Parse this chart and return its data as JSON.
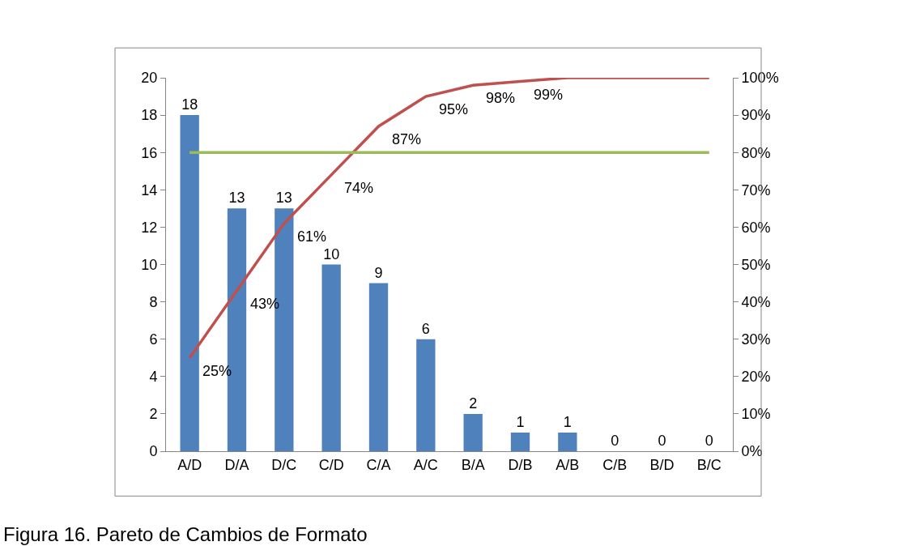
{
  "chart_data": {
    "type": "bar",
    "title": "Figura 16. Pareto de Cambios de Formato",
    "categories": [
      "A/D",
      "D/A",
      "D/C",
      "C/D",
      "C/A",
      "A/C",
      "B/A",
      "D/B",
      "A/B",
      "C/B",
      "B/D",
      "B/C"
    ],
    "series": [
      {
        "color": "#4f81bd",
        "values": [
          18,
          13,
          13,
          10,
          9,
          6,
          2,
          1,
          1,
          0,
          0,
          0
        ],
        "value_labels": [
          "18",
          "13",
          "13",
          "10",
          "9",
          "6",
          "2",
          "1",
          "1",
          "0",
          "0",
          "0"
        ]
      },
      {
        "type": "line",
        "axis": "y2",
        "color": "#c0504d",
        "values": [
          25,
          43,
          61,
          74,
          87,
          95,
          98,
          99,
          100,
          100,
          100,
          100
        ],
        "value_labels": [
          "25%",
          "43%",
          "61%",
          "74%",
          "87%",
          "95%",
          "98%",
          "99%",
          null,
          null,
          null,
          null
        ]
      }
    ],
    "ref_lines": [
      {
        "axis": "y2",
        "value": 80,
        "color": "#9bbb59"
      }
    ],
    "ylim": [
      0,
      20
    ],
    "yticks": [
      0,
      2,
      4,
      6,
      8,
      10,
      12,
      14,
      16,
      18,
      20
    ],
    "y2lim": [
      0,
      100
    ],
    "y2ticks": [
      {
        "value": 0,
        "label": "0%"
      },
      {
        "value": 10,
        "label": "10%"
      },
      {
        "value": 20,
        "label": "20%"
      },
      {
        "value": 30,
        "label": "30%"
      },
      {
        "value": 40,
        "label": "40%"
      },
      {
        "value": 50,
        "label": "50%"
      },
      {
        "value": 60,
        "label": "60%"
      },
      {
        "value": 70,
        "label": "70%"
      },
      {
        "value": 80,
        "label": "80%"
      },
      {
        "value": 90,
        "label": "90%"
      },
      {
        "value": 100,
        "label": "100%"
      }
    ],
    "grid": false,
    "legend": false
  }
}
